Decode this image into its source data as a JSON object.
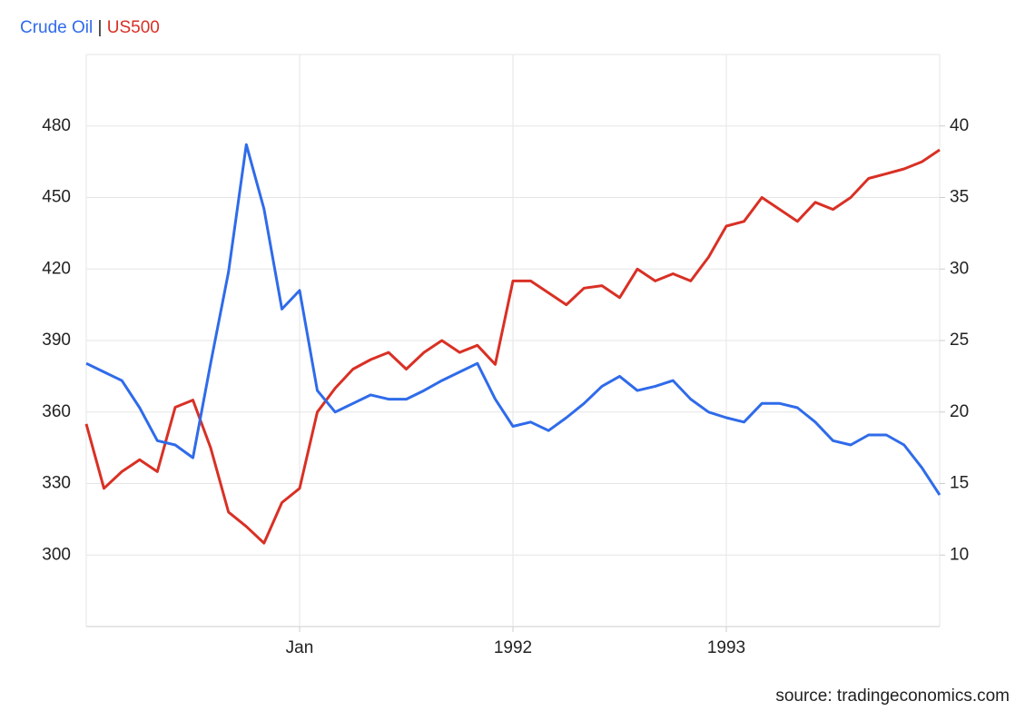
{
  "chart_data": {
    "type": "line",
    "legend_separator": "|",
    "source": "source: tradingeconomics.com",
    "x": [
      1990,
      1990.083,
      1990.167,
      1990.25,
      1990.333,
      1990.417,
      1990.5,
      1990.583,
      1990.667,
      1990.75,
      1990.833,
      1990.917,
      1991,
      1991.083,
      1991.167,
      1991.25,
      1991.333,
      1991.417,
      1991.5,
      1991.583,
      1991.667,
      1991.75,
      1991.833,
      1991.917,
      1992,
      1992.083,
      1992.167,
      1992.25,
      1992.333,
      1992.417,
      1992.5,
      1992.583,
      1992.667,
      1992.75,
      1992.833,
      1992.917,
      1993,
      1993.083,
      1993.167,
      1993.25,
      1993.333,
      1993.417,
      1993.5,
      1993.583,
      1993.667,
      1993.75,
      1993.833,
      1993.917,
      1994
    ],
    "series": [
      {
        "name": "US500",
        "color": "#d93025",
        "values": [
          355,
          328,
          335,
          340,
          335,
          362,
          365,
          345,
          318,
          312,
          305,
          322,
          328,
          360,
          370,
          378,
          382,
          385,
          378,
          385,
          390,
          385,
          388,
          380,
          415,
          415,
          410,
          405,
          412,
          413,
          408,
          420,
          415,
          418,
          415,
          425,
          438,
          440,
          450,
          445,
          440,
          448,
          445,
          450,
          458,
          460,
          462,
          465,
          470
        ]
      },
      {
        "name": "Crude Oil",
        "color": "#2f6bea",
        "axis": "y2",
        "values": [
          23.4,
          22.8,
          22.2,
          20.3,
          18,
          17.7,
          16.8,
          23.4,
          29.8,
          38.7,
          34.2,
          27.2,
          28.5,
          21.5,
          20,
          20.6,
          21.2,
          20.9,
          20.9,
          21.5,
          22.2,
          22.8,
          23.4,
          20.9,
          19,
          19.3,
          18.7,
          19.6,
          20.6,
          21.8,
          22.5,
          21.5,
          21.8,
          22.2,
          20.9,
          20,
          19.6,
          19.3,
          20.6,
          20.6,
          20.3,
          19.3,
          18,
          17.7,
          18.4,
          18.4,
          17.7,
          16.1,
          14.2
        ]
      }
    ],
    "xlim": [
      1990,
      1994
    ],
    "xticks": [
      {
        "value": 1991,
        "label": "Jan"
      },
      1992,
      1993
    ],
    "ylim": [
      270,
      510
    ],
    "yticks": [
      300,
      330,
      360,
      390,
      420,
      450,
      480
    ],
    "y2lim": [
      5,
      45
    ],
    "y2ticks": [
      10,
      15,
      20,
      25,
      30,
      35,
      40
    ],
    "grid": true
  }
}
